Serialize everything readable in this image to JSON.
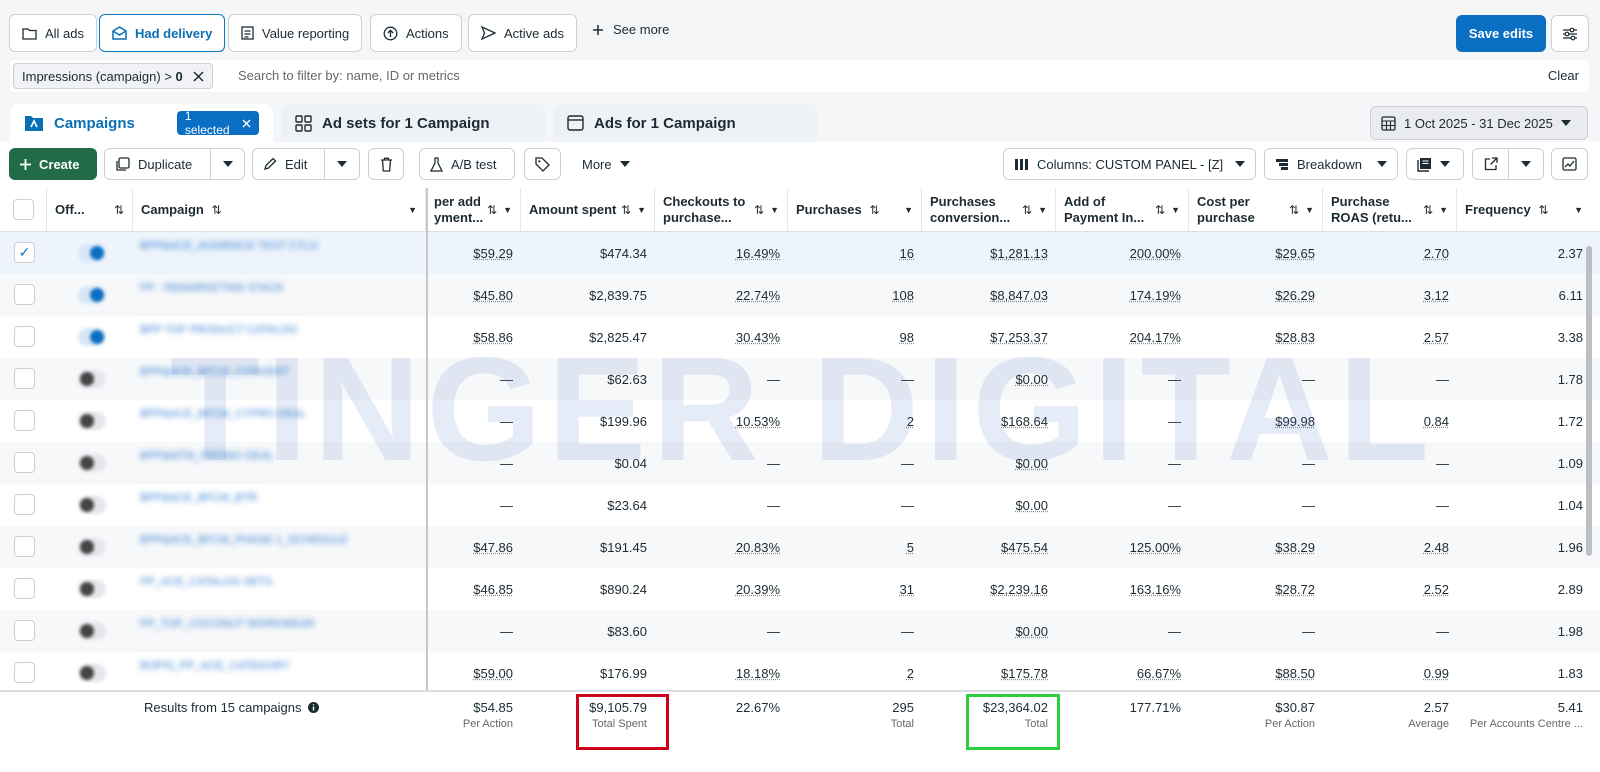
{
  "view_tabs": [
    {
      "label": "All ads",
      "icon": "folder-icon"
    },
    {
      "label": "Had delivery",
      "icon": "delivery-icon",
      "active": true
    },
    {
      "label": "Value reporting",
      "icon": "report-icon"
    },
    {
      "label": "Actions",
      "icon": "actions-icon"
    },
    {
      "label": "Active ads",
      "icon": "send-icon"
    }
  ],
  "see_more": "See more",
  "save_edits": "Save edits",
  "filter": {
    "chip_label": "Impressions (campaign) >",
    "chip_value": "0",
    "search_placeholder": "Search to filter by: name, ID or metrics",
    "clear": "Clear"
  },
  "level_tabs": {
    "campaigns": "Campaigns",
    "selected": "1 selected",
    "adsets": "Ad sets for 1 Campaign",
    "ads": "Ads for 1 Campaign"
  },
  "date_range": "1 Oct 2025 - 31 Dec 2025",
  "toolbar": {
    "create": "Create",
    "duplicate": "Duplicate",
    "edit": "Edit",
    "ab_test": "A/B test",
    "more": "More",
    "columns": "Columns: CUSTOM PANEL - [Z]",
    "breakdown": "Breakdown"
  },
  "columns": {
    "off": "Off...",
    "campaign": "Campaign",
    "cost_per_add": "per add yment...",
    "amount_spent": "Amount spent",
    "checkouts": "Checkouts to purchase...",
    "purchases": "Purchases",
    "purchases_conv": "Purchases conversion...",
    "add_payment": "Add of Payment In...",
    "cost_per_purchase": "Cost per purchase",
    "roas": "Purchase ROAS (retu...",
    "frequency": "Frequency"
  },
  "rows": [
    {
      "name": "BPP&ACE_AUDIENCE TEST CTLG",
      "status": "on",
      "selected": true,
      "c1": "$59.29",
      "c2": "$474.34",
      "c3": "16.49%",
      "c4": "16",
      "c5": "$1,281.13",
      "c6": "200.00%",
      "c7": "$29.65",
      "c8": "2.70",
      "c9": "2.37"
    },
    {
      "name": "PP - REMARKETING STACK",
      "status": "on",
      "c1": "$45.80",
      "c2": "$2,839.75",
      "c3": "22.74%",
      "c4": "108",
      "c5": "$8,847.03",
      "c6": "174.19%",
      "c7": "$26.29",
      "c8": "3.12",
      "c9": "6.11"
    },
    {
      "name": "BPP TOF PRODUCT CATALOG",
      "status": "on",
      "c1": "$58.86",
      "c2": "$2,825.47",
      "c3": "30.43%",
      "c4": "98",
      "c5": "$7,253.37",
      "c6": "204.17%",
      "c7": "$28.83",
      "c8": "2.57",
      "c9": "3.38"
    },
    {
      "name": "BPP&ACE_BFCM_CONVERT",
      "status": "off",
      "c1": "—",
      "c2": "$62.63",
      "c3": "—",
      "c4": "—",
      "c5": "$0.00",
      "c6": "—",
      "c7": "—",
      "c8": "—",
      "c9": "1.78"
    },
    {
      "name": "BPP&ACE_BFCM_CYPRO DEAL",
      "status": "off",
      "c1": "—",
      "c2": "$199.96",
      "c3": "10.53%",
      "c4": "2",
      "c5": "$168.64",
      "c6": "—",
      "c7": "$99.98",
      "c8": "0.84",
      "c9": "1.72"
    },
    {
      "name": "BPP&MTM_PROMO DEAL",
      "status": "off",
      "c1": "—",
      "c2": "$0.04",
      "c3": "—",
      "c4": "—",
      "c5": "$0.00",
      "c6": "—",
      "c7": "—",
      "c8": "—",
      "c9": "1.09"
    },
    {
      "name": "BPP&ACE_BFCM_BTR",
      "status": "off",
      "c1": "—",
      "c2": "$23.64",
      "c3": "—",
      "c4": "—",
      "c5": "$0.00",
      "c6": "—",
      "c7": "—",
      "c8": "—",
      "c9": "1.04"
    },
    {
      "name": "BPP&ACE_BFCM_PHASE 1_SCHEDULE",
      "status": "off",
      "c1": "$47.86",
      "c2": "$191.45",
      "c3": "20.83%",
      "c4": "5",
      "c5": "$475.54",
      "c6": "125.00%",
      "c7": "$38.29",
      "c8": "2.48",
      "c9": "1.96"
    },
    {
      "name": "PP_ACE_CATALOG SETS",
      "status": "off",
      "c1": "$46.85",
      "c2": "$890.24",
      "c3": "20.39%",
      "c4": "31",
      "c5": "$2,239.16",
      "c6": "163.16%",
      "c7": "$28.72",
      "c8": "2.52",
      "c9": "2.89"
    },
    {
      "name": "PP_TOF_COCONUT WORKWEAR",
      "status": "off",
      "c1": "—",
      "c2": "$83.60",
      "c3": "—",
      "c4": "—",
      "c5": "$0.00",
      "c6": "—",
      "c7": "—",
      "c8": "—",
      "c9": "1.98"
    },
    {
      "name": "BOPIS_PP_ACE_CATEGORY",
      "status": "off",
      "c1": "$59.00",
      "c2": "$176.99",
      "c3": "18.18%",
      "c4": "2",
      "c5": "$175.78",
      "c6": "66.67%",
      "c7": "$88.50",
      "c8": "0.99",
      "c9": "1.83"
    }
  ],
  "footer": {
    "results": "Results from 15 campaigns",
    "c1": {
      "value": "$54.85",
      "sub": "Per Action"
    },
    "c2": {
      "value": "$9,105.79",
      "sub": "Total Spent"
    },
    "c3": {
      "value": "22.67%",
      "sub": ""
    },
    "c4": {
      "value": "295",
      "sub": "Total"
    },
    "c5": {
      "value": "$23,364.02",
      "sub": "Total"
    },
    "c6": {
      "value": "177.71%",
      "sub": ""
    },
    "c7": {
      "value": "$30.87",
      "sub": "Per Action"
    },
    "c8": {
      "value": "2.57",
      "sub": "Average"
    },
    "c9": {
      "value": "5.41",
      "sub": "Per Accounts Centre ..."
    }
  },
  "watermark": "TINGER DIGITAL",
  "colors": {
    "primary": "#0a6fc2",
    "create": "#216c46",
    "highlight_red": "#d0021b",
    "highlight_green": "#2ecc40"
  }
}
